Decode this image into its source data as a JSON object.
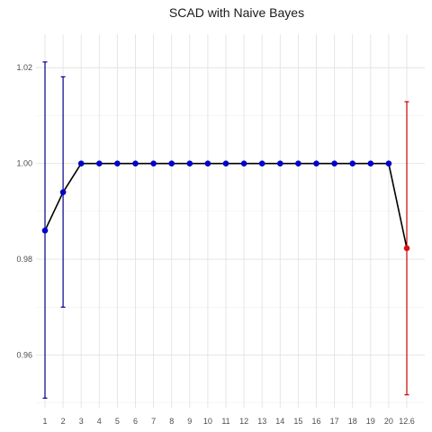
{
  "chart_data": {
    "type": "line",
    "title": "SCAD with Naive Bayes",
    "xlabel": "",
    "ylabel": "",
    "categories": [
      "1",
      "2",
      "3",
      "4",
      "5",
      "6",
      "7",
      "8",
      "9",
      "10",
      "11",
      "12",
      "13",
      "14",
      "15",
      "16",
      "17",
      "18",
      "19",
      "20",
      "12.6"
    ],
    "ylim": [
      0.949,
      1.027
    ],
    "yticks": [
      0.96,
      0.98,
      1.0,
      1.02
    ],
    "ytick_labels": [
      "0.96",
      "0.98",
      "1.00",
      "1.02"
    ],
    "grid": true,
    "legend": "none",
    "series": [
      {
        "values": [
          0.986,
          0.994,
          1.0,
          1.0,
          1.0,
          1.0,
          1.0,
          1.0,
          1.0,
          1.0,
          1.0,
          1.0,
          1.0,
          1.0,
          1.0,
          1.0,
          1.0,
          1.0,
          1.0,
          1.0,
          0.9823
        ],
        "lower": [
          0.951,
          0.97,
          null,
          null,
          null,
          null,
          null,
          null,
          null,
          null,
          null,
          null,
          null,
          null,
          null,
          null,
          null,
          null,
          null,
          null,
          0.9517
        ],
        "upper": [
          1.0212,
          1.0181,
          null,
          null,
          null,
          null,
          null,
          null,
          null,
          null,
          null,
          null,
          null,
          null,
          null,
          null,
          null,
          null,
          null,
          null,
          1.0129
        ],
        "point_colors": [
          "#0000cc",
          "#0000cc",
          "#0000cc",
          "#0000cc",
          "#0000cc",
          "#0000cc",
          "#0000cc",
          "#0000cc",
          "#0000cc",
          "#0000cc",
          "#0000cc",
          "#0000cc",
          "#0000cc",
          "#0000cc",
          "#0000cc",
          "#0000cc",
          "#0000cc",
          "#0000cc",
          "#0000cc",
          "#0000cc",
          "#dd1111"
        ]
      }
    ],
    "colors": {
      "line": "#000000",
      "point": "#0000cc",
      "highlight": "#dd1111",
      "errorbar": "#00008b",
      "errorbar_highlight": "#cc0000"
    }
  }
}
